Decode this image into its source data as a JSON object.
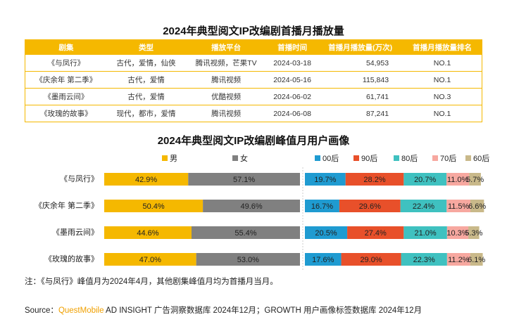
{
  "table": {
    "title": "2024年典型阅文IP改编剧首播月播放量",
    "header": [
      "剧集",
      "类型",
      "播放平台",
      "首播时间",
      "首播月播放量(万次)",
      "首播月播放量排名"
    ],
    "rows": [
      [
        "《与凤行》",
        "古代，爱情，仙侠",
        "腾讯视频，芒果TV",
        "2024-03-18",
        "54,953",
        "NO.1"
      ],
      [
        "《庆余年 第二季》",
        "古代，爱情",
        "腾讯视频",
        "2024-05-16",
        "115,843",
        "NO.1"
      ],
      [
        "《墨雨云间》",
        "古代，爱情",
        "优酷视频",
        "2024-06-02",
        "61,741",
        "NO.3"
      ],
      [
        "《玫瑰的故事》",
        "现代，都市，爱情",
        "腾讯视频",
        "2024-06-08",
        "87,241",
        "NO.1"
      ]
    ]
  },
  "chart_data": [
    {
      "type": "bar",
      "title": "2024年典型阅文IP改编剧峰值月用户画像",
      "categories": [
        "《与凤行》",
        "《庆余年 第二季》",
        "《墨雨云间》",
        "《玫瑰的故事》"
      ],
      "xlim": [
        0,
        100
      ],
      "series": [
        {
          "name": "男",
          "color": "#f5b800",
          "values": [
            42.9,
            50.4,
            44.6,
            47.0
          ],
          "value_labels": [
            "42.9%",
            "50.4%",
            "44.6%",
            "47.0%"
          ]
        },
        {
          "name": "女",
          "color": "#808080",
          "values": [
            57.1,
            49.6,
            55.4,
            53.0
          ],
          "value_labels": [
            "57.1%",
            "49.6%",
            "55.4%",
            "53.0%"
          ]
        }
      ]
    },
    {
      "type": "bar",
      "xlim": [
        0,
        100
      ],
      "series": [
        {
          "name": "00后",
          "color": "#1f9bd1",
          "values": [
            19.7,
            16.7,
            20.5,
            17.6
          ],
          "value_labels": [
            "19.7%",
            "16.7%",
            "20.5%",
            "17.6%"
          ]
        },
        {
          "name": "90后",
          "color": "#e8502a",
          "values": [
            28.2,
            29.6,
            27.4,
            29.0
          ],
          "value_labels": [
            "28.2%",
            "29.6%",
            "27.4%",
            "29.0%"
          ]
        },
        {
          "name": "80后",
          "color": "#3fc1c0",
          "values": [
            20.7,
            22.4,
            21.0,
            22.3
          ],
          "value_labels": [
            "20.7%",
            "22.4%",
            "21.0%",
            "22.3%"
          ]
        },
        {
          "name": "70后",
          "color": "#f7a8a0",
          "values": [
            11.0,
            11.5,
            10.3,
            11.2
          ],
          "value_labels": [
            "11.0%",
            "11.5%",
            "10.3%",
            "11.2%"
          ]
        },
        {
          "name": "60后",
          "color": "#c9b98a",
          "values": [
            5.7,
            6.6,
            5.3,
            6.1
          ],
          "value_labels": [
            "5.7%",
            "6.6%",
            "5.3%",
            "6.1%"
          ]
        }
      ]
    }
  ],
  "note": "注：《与凤行》峰值月为2024年4月，其他剧集峰值月均为首播月当月。",
  "source": {
    "prefix": "Source：",
    "brand": "QuestMobile",
    "text": " AD INSIGHT 广告洞察数据库 2024年12月；GROWTH 用户画像标签数据库 2024年12月"
  }
}
